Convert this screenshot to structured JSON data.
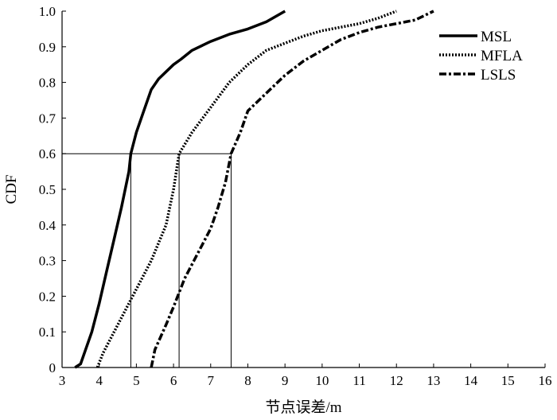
{
  "chart_data": {
    "type": "line",
    "title": "",
    "xlabel": "节点误差/m",
    "ylabel": "CDF",
    "xlim": [
      3,
      16
    ],
    "ylim": [
      0,
      1.0
    ],
    "x_ticks": [
      "3",
      "4",
      "5",
      "6",
      "7",
      "8",
      "9",
      "10",
      "11",
      "12",
      "13",
      "14",
      "15",
      "16"
    ],
    "y_ticks": [
      "0",
      "0.1",
      "0.2",
      "0.3",
      "0.4",
      "0.5",
      "0.6",
      "0.7",
      "0.8",
      "0.9",
      "1.0"
    ],
    "grid": false,
    "legend_position": "top-right",
    "series": [
      {
        "name": "MSL",
        "style": "solid",
        "points": [
          [
            3.35,
            0
          ],
          [
            3.5,
            0.01
          ],
          [
            3.6,
            0.04
          ],
          [
            3.8,
            0.1
          ],
          [
            4.0,
            0.18
          ],
          [
            4.2,
            0.27
          ],
          [
            4.4,
            0.36
          ],
          [
            4.6,
            0.45
          ],
          [
            4.8,
            0.55
          ],
          [
            4.85,
            0.6
          ],
          [
            5.0,
            0.66
          ],
          [
            5.2,
            0.72
          ],
          [
            5.4,
            0.78
          ],
          [
            5.6,
            0.81
          ],
          [
            5.8,
            0.83
          ],
          [
            6.0,
            0.85
          ],
          [
            6.2,
            0.865
          ],
          [
            6.5,
            0.89
          ],
          [
            6.8,
            0.905
          ],
          [
            7.0,
            0.915
          ],
          [
            7.5,
            0.935
          ],
          [
            8.0,
            0.95
          ],
          [
            8.5,
            0.97
          ],
          [
            9.0,
            1.0
          ]
        ]
      },
      {
        "name": "MFLA",
        "style": "dotted",
        "points": [
          [
            3.95,
            0
          ],
          [
            4.1,
            0.04
          ],
          [
            4.4,
            0.1
          ],
          [
            4.8,
            0.18
          ],
          [
            5.0,
            0.22
          ],
          [
            5.4,
            0.3
          ],
          [
            5.8,
            0.4
          ],
          [
            6.0,
            0.5
          ],
          [
            6.15,
            0.6
          ],
          [
            6.5,
            0.66
          ],
          [
            7.0,
            0.73
          ],
          [
            7.5,
            0.8
          ],
          [
            8.0,
            0.85
          ],
          [
            8.5,
            0.89
          ],
          [
            9.0,
            0.91
          ],
          [
            9.5,
            0.93
          ],
          [
            10.0,
            0.945
          ],
          [
            10.5,
            0.955
          ],
          [
            11.0,
            0.965
          ],
          [
            11.5,
            0.98
          ],
          [
            12.0,
            1.0
          ]
        ]
      },
      {
        "name": "LSLS",
        "style": "dashdot",
        "points": [
          [
            5.4,
            0
          ],
          [
            5.5,
            0.05
          ],
          [
            5.8,
            0.12
          ],
          [
            6.0,
            0.17
          ],
          [
            6.3,
            0.25
          ],
          [
            6.7,
            0.33
          ],
          [
            7.0,
            0.39
          ],
          [
            7.2,
            0.45
          ],
          [
            7.4,
            0.52
          ],
          [
            7.55,
            0.6
          ],
          [
            7.8,
            0.66
          ],
          [
            8.0,
            0.72
          ],
          [
            8.5,
            0.77
          ],
          [
            9.0,
            0.82
          ],
          [
            9.5,
            0.86
          ],
          [
            10.0,
            0.89
          ],
          [
            10.5,
            0.92
          ],
          [
            11.0,
            0.94
          ],
          [
            11.5,
            0.955
          ],
          [
            12.0,
            0.965
          ],
          [
            12.5,
            0.975
          ],
          [
            13.0,
            1.0
          ]
        ]
      }
    ],
    "reference_lines": {
      "y": 0.6,
      "x_values": [
        4.85,
        6.15,
        7.55
      ]
    }
  }
}
